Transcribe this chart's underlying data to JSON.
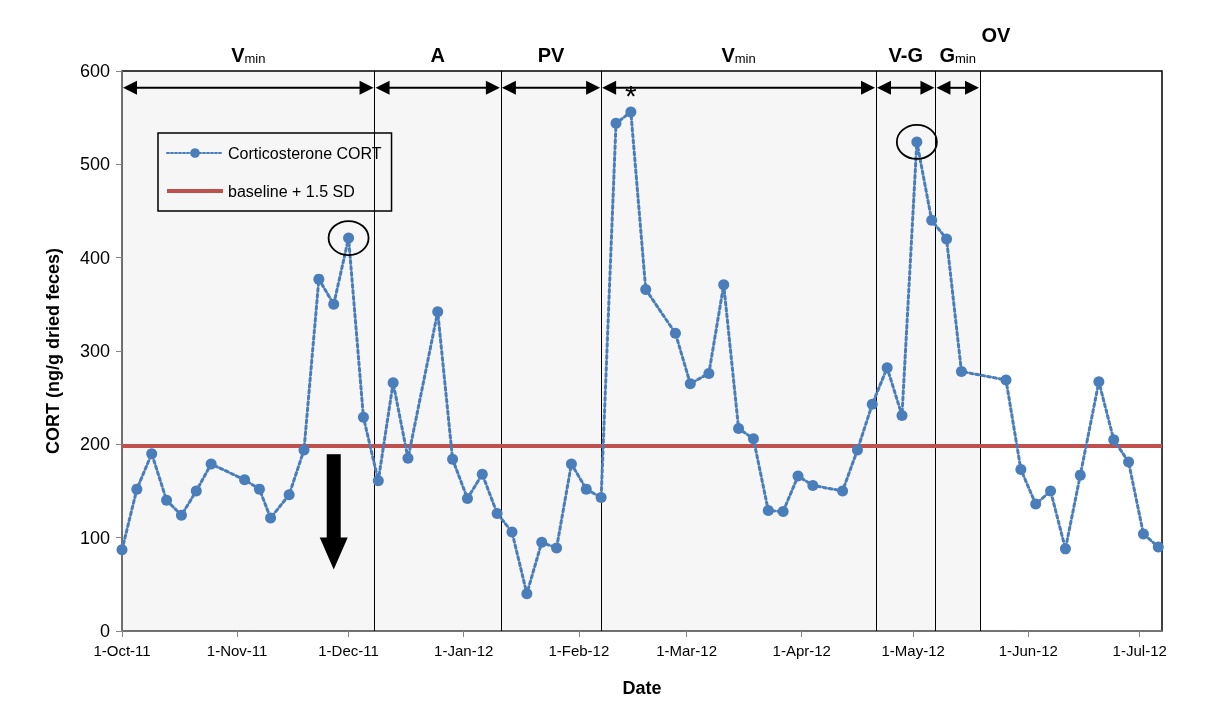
{
  "chart_data": {
    "type": "line",
    "xlabel": "Date",
    "ylabel": "CORT (ng/g dried feces)",
    "x": [
      "2011-10-01",
      "2011-10-05",
      "2011-10-09",
      "2011-10-13",
      "2011-10-17",
      "2011-10-21",
      "2011-10-25",
      "2011-11-03",
      "2011-11-07",
      "2011-11-10",
      "2011-11-15",
      "2011-11-19",
      "2011-11-23",
      "2011-11-27",
      "2011-12-01",
      "2011-12-05",
      "2011-12-09",
      "2011-12-13",
      "2011-12-17",
      "2011-12-25",
      "2011-12-29",
      "2012-01-02",
      "2012-01-06",
      "2012-01-10",
      "2012-01-14",
      "2012-01-18",
      "2012-01-22",
      "2012-01-26",
      "2012-01-30",
      "2012-02-03",
      "2012-02-07",
      "2012-02-11",
      "2012-02-15",
      "2012-02-19",
      "2012-02-27",
      "2012-03-02",
      "2012-03-07",
      "2012-03-11",
      "2012-03-15",
      "2012-03-19",
      "2012-03-23",
      "2012-03-27",
      "2012-03-31",
      "2012-04-04",
      "2012-04-12",
      "2012-04-16",
      "2012-04-20",
      "2012-04-24",
      "2012-04-28",
      "2012-05-02",
      "2012-05-06",
      "2012-05-10",
      "2012-05-14",
      "2012-05-26",
      "2012-05-30",
      "2012-06-03",
      "2012-06-07",
      "2012-06-11",
      "2012-06-15",
      "2012-06-20",
      "2012-06-24",
      "2012-06-28",
      "2012-07-02",
      "2012-07-06"
    ],
    "series": [
      {
        "name": "Corticosterone CORT",
        "color": "#4a7ebb",
        "values": [
          87,
          152,
          190,
          140,
          124,
          150,
          179,
          162,
          152,
          121,
          146,
          194,
          377,
          350,
          421,
          229,
          161,
          266,
          185,
          342,
          184,
          142,
          168,
          126,
          106,
          40,
          95,
          89,
          179,
          152,
          143,
          544,
          556,
          366,
          319,
          265,
          276,
          371,
          217,
          206,
          129,
          128,
          166,
          156,
          150,
          194,
          243,
          282,
          231,
          524,
          440,
          420,
          278,
          269,
          173,
          136,
          150,
          88,
          167,
          267,
          205,
          181,
          104,
          90
        ]
      }
    ],
    "xlim": [
      "2011-10-01",
      "2012-07-07"
    ],
    "xticks": [
      {
        "value": "2011-10-01",
        "label": "1-Oct-11"
      },
      {
        "value": "2011-11-01",
        "label": "1-Nov-11"
      },
      {
        "value": "2011-12-01",
        "label": "1-Dec-11"
      },
      {
        "value": "2012-01-01",
        "label": "1-Jan-12"
      },
      {
        "value": "2012-02-01",
        "label": "1-Feb-12"
      },
      {
        "value": "2012-03-01",
        "label": "1-Mar-12"
      },
      {
        "value": "2012-04-01",
        "label": "1-Apr-12"
      },
      {
        "value": "2012-05-01",
        "label": "1-May-12"
      },
      {
        "value": "2012-06-01",
        "label": "1-Jun-12"
      },
      {
        "value": "2012-07-01",
        "label": "1-Jul-12"
      }
    ],
    "ylim": [
      0,
      600
    ],
    "yticks": [
      0,
      100,
      200,
      300,
      400,
      500,
      600
    ],
    "ref_lines": [
      {
        "axis": "y",
        "value": 198,
        "label": "baseline + 1.5 SD",
        "color": "#c0504d"
      },
      {
        "axis": "x",
        "value": "2012-05-19",
        "label": "OV"
      }
    ],
    "bands": [
      {
        "axis": "x",
        "from": "2011-10-01",
        "to": "2011-12-08",
        "label": "V$_{min}$"
      },
      {
        "axis": "x",
        "from": "2011-12-08",
        "to": "2012-01-11",
        "label": "A"
      },
      {
        "axis": "x",
        "from": "2012-01-11",
        "to": "2012-02-07",
        "label": "PV"
      },
      {
        "axis": "x",
        "from": "2012-02-07",
        "to": "2012-04-21",
        "label": "V$_{min}$"
      },
      {
        "axis": "x",
        "from": "2012-04-21",
        "to": "2012-05-07",
        "label": "V-G"
      },
      {
        "axis": "x",
        "from": "2012-05-07",
        "to": "2012-05-19",
        "label": "G$_{min}$"
      }
    ],
    "annotations": [
      {
        "text": "*",
        "x": "2012-02-15",
        "y": 556
      }
    ],
    "legend": "top left",
    "grid": false,
    "marker": "circle",
    "line_style": "dotted"
  }
}
